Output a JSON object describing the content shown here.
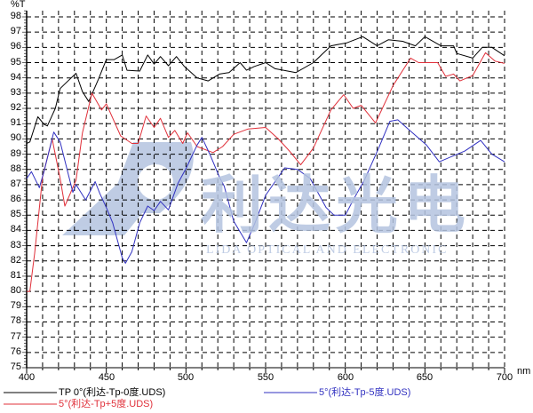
{
  "chart_data": {
    "type": "line",
    "title": "",
    "xlabel": "nm",
    "ylabel": "%T",
    "xlim": [
      400,
      700
    ],
    "ylim": [
      75,
      98
    ],
    "xticks": [
      400,
      450,
      500,
      550,
      600,
      650,
      700
    ],
    "yticks": [
      75,
      76,
      77,
      78,
      79,
      80,
      81,
      82,
      83,
      84,
      85,
      86,
      87,
      88,
      89,
      90,
      91,
      92,
      93,
      94,
      95,
      96,
      97,
      98
    ],
    "grid": true,
    "grid_style": "dashed",
    "legend_position": "bottom",
    "watermark": {
      "cn": "利达光电",
      "en": "LIDA OPTICAL AND ELECTRONIC",
      "color": "#b4c4e0"
    },
    "series": [
      {
        "name": "TP  0°(利达-Tp-0度.UDS)",
        "color": "#000000",
        "x": [
          400,
          402,
          407,
          411,
          413,
          418,
          421,
          425,
          431,
          435,
          439,
          445,
          450,
          455,
          460,
          463,
          471,
          476,
          480,
          484,
          489,
          494,
          499,
          507,
          514,
          521,
          527,
          534,
          538,
          543,
          550,
          556,
          569,
          580,
          591,
          601,
          611,
          620,
          627,
          636,
          644,
          650,
          660,
          668,
          670,
          680,
          686,
          692,
          700
        ],
        "y": [
          89.7,
          89.8,
          91.45,
          90.95,
          90.85,
          92.0,
          93.3,
          93.7,
          94.3,
          93.1,
          92.45,
          93.9,
          95.2,
          95.2,
          95.5,
          94.5,
          94.45,
          95.5,
          94.9,
          95.4,
          94.8,
          95.4,
          94.75,
          94.0,
          93.8,
          94.25,
          94.35,
          95.0,
          94.5,
          94.75,
          95.0,
          94.6,
          94.35,
          95.0,
          96.1,
          96.3,
          96.7,
          96.1,
          96.5,
          96.4,
          96.1,
          96.7,
          96.1,
          96.1,
          95.6,
          95.3,
          96.0,
          96.0,
          95.45
        ]
      },
      {
        "name": "5°(利达-Tp+5度.UDS)",
        "color": "#e0303a",
        "x": [
          400,
          402,
          405,
          407,
          410,
          416,
          421,
          424,
          431,
          435,
          441,
          447,
          450,
          459,
          466,
          470,
          475,
          480,
          484,
          489,
          493,
          498,
          501,
          507,
          517,
          523,
          530,
          539,
          550,
          558,
          565,
          572,
          580,
          591,
          599,
          605,
          610,
          619,
          630,
          641,
          646,
          658,
          663,
          668,
          672,
          680,
          688,
          694,
          700
        ],
        "y": [
          80.0,
          80.0,
          82.5,
          84.5,
          87.5,
          90.0,
          87.4,
          85.6,
          87.3,
          90.4,
          93.0,
          91.9,
          92.3,
          90.2,
          89.7,
          89.7,
          91.5,
          90.75,
          91.35,
          90.1,
          90.55,
          89.7,
          90.4,
          89.5,
          89.1,
          89.5,
          90.3,
          90.65,
          90.75,
          90.0,
          89.2,
          88.3,
          89.4,
          91.9,
          92.9,
          92.0,
          92.2,
          91.05,
          93.5,
          95.3,
          95.0,
          95.0,
          94.1,
          94.25,
          93.8,
          94.15,
          95.65,
          95.1,
          94.95
        ]
      },
      {
        "name": "5°(利达-Tp-5度.UDS)",
        "color": "#3030c0",
        "x": [
          400,
          403,
          408,
          411,
          417,
          421,
          429,
          431,
          437,
          443,
          446,
          450,
          454,
          460,
          462,
          466,
          471,
          476,
          480,
          484,
          489,
          495,
          500,
          507,
          510,
          515,
          521,
          524,
          530,
          538,
          543,
          550,
          562,
          570,
          578,
          588,
          593,
          600,
          605,
          612,
          621,
          628,
          633,
          640,
          651,
          659,
          668,
          675,
          685,
          692,
          700
        ],
        "y": [
          87.4,
          87.85,
          86.8,
          87.9,
          90.45,
          89.8,
          86.5,
          87.0,
          86.0,
          87.2,
          86.4,
          85.5,
          84.5,
          82.2,
          81.85,
          82.6,
          84.5,
          85.6,
          85.3,
          85.9,
          85.35,
          87.1,
          88.05,
          89.6,
          90.1,
          89.0,
          87.5,
          86.9,
          84.6,
          83.2,
          84.4,
          86.3,
          88.1,
          88.0,
          87.4,
          85.5,
          85.0,
          85.0,
          86.0,
          87.3,
          89.4,
          91.15,
          91.25,
          90.6,
          89.6,
          88.5,
          88.9,
          89.2,
          89.9,
          89.0,
          88.5
        ]
      }
    ]
  }
}
